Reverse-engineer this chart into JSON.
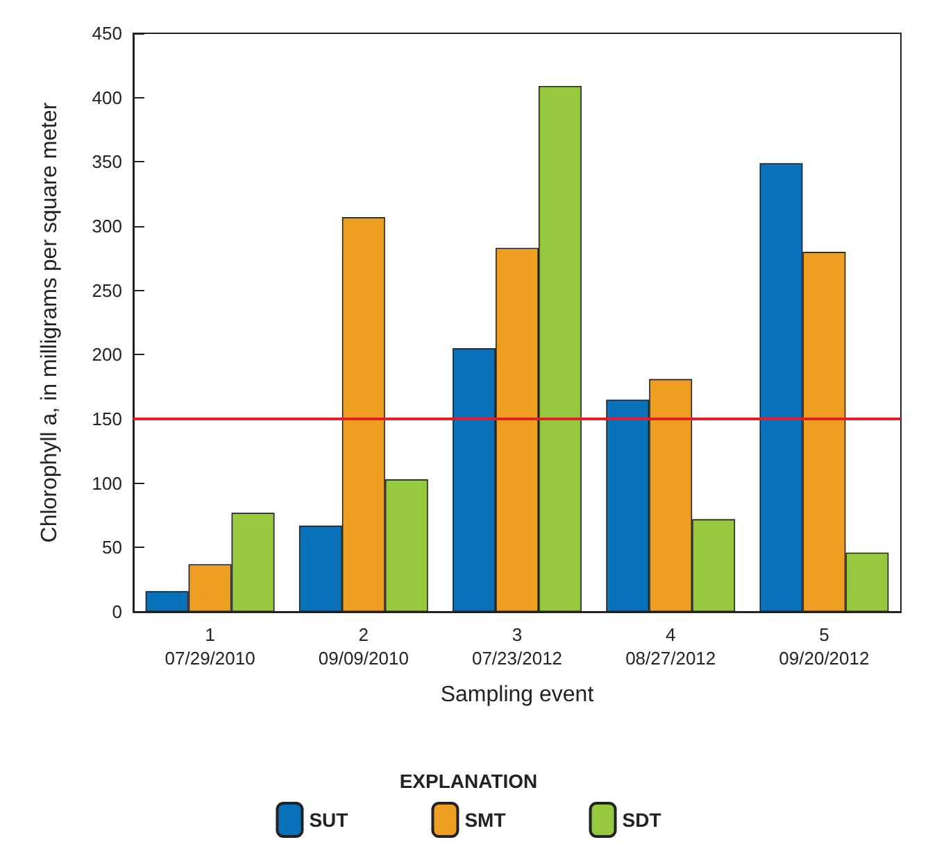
{
  "chart_data": {
    "type": "bar",
    "xlabel": "Sampling event",
    "ylabel": "Chlorophyll a, in milligrams per square meter",
    "legend_title": "EXPLANATION",
    "categories": [
      "1\n07/29/2010",
      "2\n09/09/2010",
      "3\n07/23/2012",
      "4\n08/27/2012",
      "5\n09/20/2012"
    ],
    "series": [
      {
        "name": "SUT",
        "color": "#0a72ba",
        "values": [
          16,
          67,
          205,
          165,
          349
        ]
      },
      {
        "name": "SMT",
        "color": "#ee9f22",
        "values": [
          37,
          307,
          283,
          181,
          280
        ]
      },
      {
        "name": "SDT",
        "color": "#96c93d",
        "values": [
          77,
          103,
          409,
          72,
          46
        ]
      }
    ],
    "ylim": [
      0,
      450
    ],
    "yticks": [
      0,
      50,
      100,
      150,
      200,
      250,
      300,
      350,
      400,
      450
    ],
    "grid": false,
    "legend": "bottom",
    "ref_lines": [
      {
        "axis": "y",
        "value": 150,
        "color": "#e31f26"
      }
    ]
  }
}
